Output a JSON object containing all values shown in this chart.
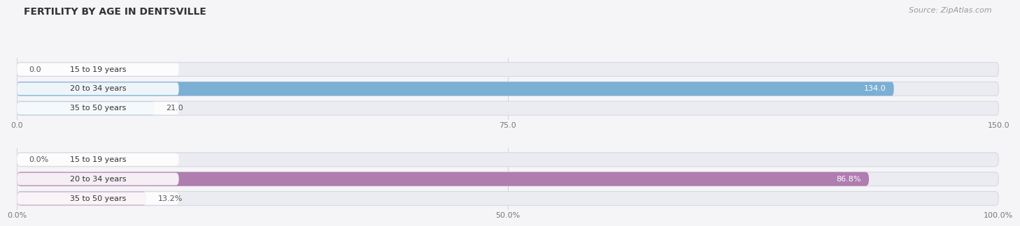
{
  "title": "FERTILITY BY AGE IN DENTSVILLE",
  "source": "Source: ZipAtlas.com",
  "top_chart": {
    "categories": [
      "15 to 19 years",
      "20 to 34 years",
      "35 to 50 years"
    ],
    "values": [
      0.0,
      134.0,
      21.0
    ],
    "xlim": [
      0,
      150
    ],
    "xticks": [
      0.0,
      75.0,
      150.0
    ],
    "xtick_labels": [
      "0.0",
      "75.0",
      "150.0"
    ],
    "bar_color_main": "#7bafd4",
    "bar_color_light": "#b8d4ea",
    "label_inside_color": "#ffffff",
    "label_outside_color": "#555555"
  },
  "bottom_chart": {
    "categories": [
      "15 to 19 years",
      "20 to 34 years",
      "35 to 50 years"
    ],
    "values": [
      0.0,
      86.8,
      13.2
    ],
    "xlim": [
      0,
      100
    ],
    "xticks": [
      0.0,
      50.0,
      100.0
    ],
    "xtick_labels": [
      "0.0%",
      "50.0%",
      "100.0%"
    ],
    "bar_color_main": "#b07db0",
    "bar_color_light": "#cba8cb",
    "label_inside_color": "#ffffff",
    "label_outside_color": "#555555"
  },
  "bg_color": "#f5f5f8",
  "bar_bg_color": "#e8e8f0",
  "bar_row_bg": "#ebebf2",
  "category_label_color": "#333333",
  "category_pill_bg": "#ffffff",
  "title_color": "#333333",
  "source_color": "#999999",
  "grid_color": "#d0d0d8",
  "title_fontsize": 10,
  "source_fontsize": 8,
  "tick_fontsize": 8,
  "cat_fontsize": 8,
  "value_fontsize": 8
}
